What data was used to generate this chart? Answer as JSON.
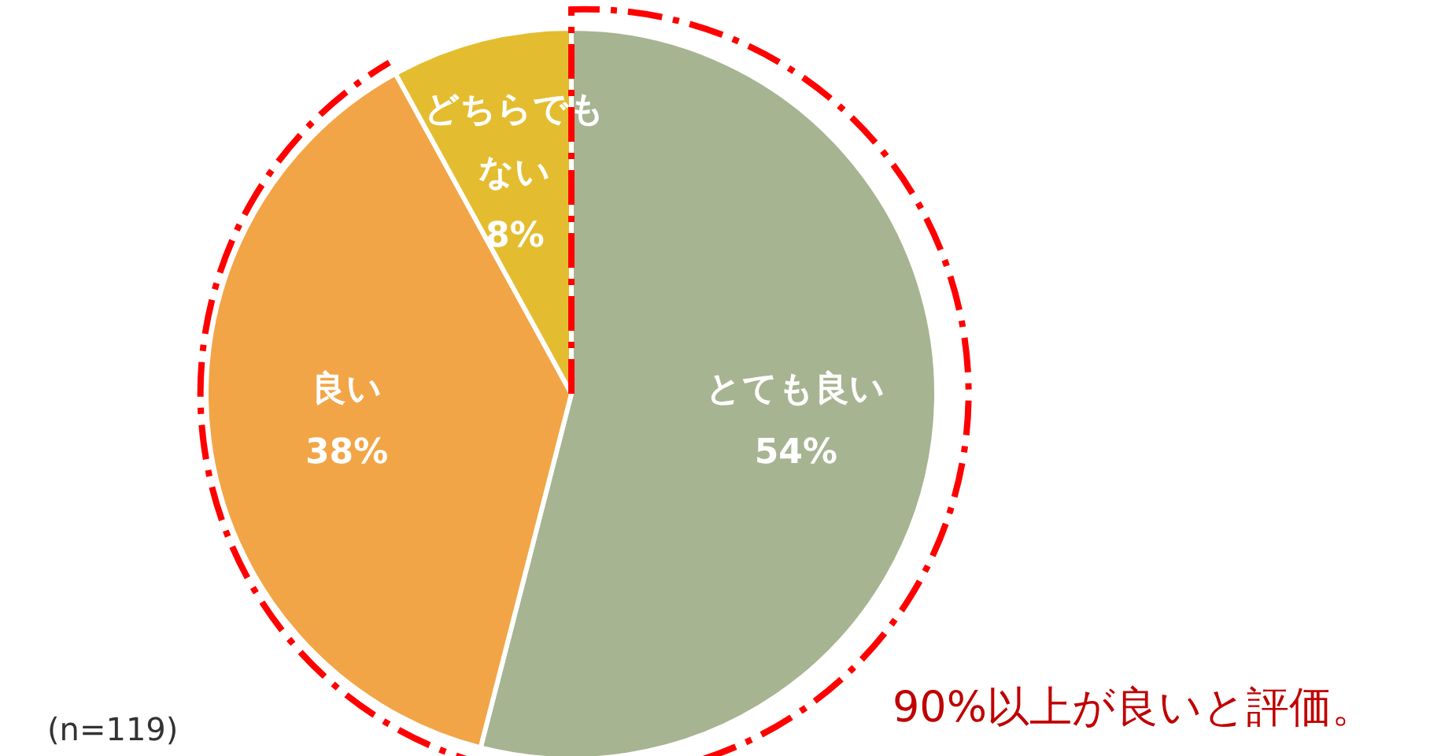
{
  "chart_data": {
    "type": "pie",
    "categories": [
      "とても良い",
      "良い",
      "どちらでもない"
    ],
    "values": [
      54,
      38,
      8
    ],
    "colors": [
      "#a6b491",
      "#f2a546",
      "#e3bd2f"
    ],
    "value_labels": [
      "54%",
      "38%",
      "8%"
    ],
    "annotations": [
      "90%以上が良いと評価。",
      "(n=119)"
    ]
  }
}
